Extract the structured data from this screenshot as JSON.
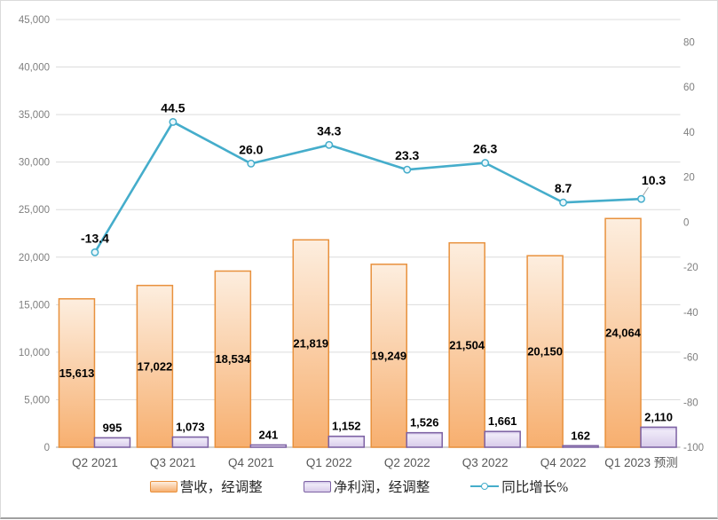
{
  "chart_data": {
    "type": "combo",
    "categories": [
      "Q2 2021",
      "Q3 2021",
      "Q4 2021",
      "Q1 2022",
      "Q2 2022",
      "Q3 2022",
      "Q4 2022",
      "Q1 2023 预测"
    ],
    "series": [
      {
        "name": "营收，经调整",
        "type": "bar",
        "axis": "left",
        "values": [
          15613,
          17022,
          18534,
          21819,
          19249,
          21504,
          20150,
          24064
        ],
        "labels": [
          "15,613",
          "17,022",
          "18,534",
          "21,819",
          "19,249",
          "21,504",
          "20,150",
          "24,064"
        ],
        "label_position": "inside-center"
      },
      {
        "name": "净利润，经调整",
        "type": "bar",
        "axis": "left",
        "values": [
          995,
          1073,
          241,
          1152,
          1526,
          1661,
          162,
          2110
        ],
        "labels": [
          "995",
          "1,073",
          "241",
          "1,152",
          "1,526",
          "1,661",
          "162",
          "2,110"
        ],
        "label_position": "outside-above"
      },
      {
        "name": "同比增长%",
        "type": "line",
        "axis": "right",
        "values": [
          -13.4,
          44.5,
          26.0,
          34.3,
          23.3,
          26.3,
          8.7,
          10.3
        ],
        "labels": [
          "-13.4",
          "44.5",
          "26.0",
          "34.3",
          "23.3",
          "26.3",
          "8.7",
          "10.3"
        ],
        "label_position": "above",
        "leader_index": 7
      }
    ],
    "y_left": {
      "min": 0,
      "max": 45000,
      "tick_step": 5000,
      "tick_labels": [
        "0",
        "5,000",
        "10,000",
        "15,000",
        "20,000",
        "25,000",
        "30,000",
        "35,000",
        "40,000",
        "45,000"
      ]
    },
    "y_right": {
      "min": -100,
      "max": 90,
      "tick_step": 20,
      "tick_labels": [
        "-100",
        "-80",
        "-60",
        "-40",
        "-20",
        "0",
        "20",
        "40",
        "60",
        "80"
      ]
    },
    "grid": true,
    "legend_position": "bottom",
    "colors": {
      "revenue_border": "#E8913D",
      "revenue_fill_top": "#FDEEDF",
      "revenue_fill_bottom": "#F7AF6F",
      "profit_border": "#7C61A3",
      "profit_fill_top": "#CFC2E6",
      "profit_fill_highlight": "#EFEAF8",
      "profit_fill_bottom": "#D8CBEA",
      "line": "#45ADCB",
      "marker_fill": "#EAF7FB",
      "grid_line": "#DCDCDC",
      "axis_line": "#B7B7B7",
      "tick_text": "#7F7F7F",
      "category_text": "#595959",
      "data_label_text": "#000000",
      "leader_line": "#A6A6A6"
    }
  }
}
